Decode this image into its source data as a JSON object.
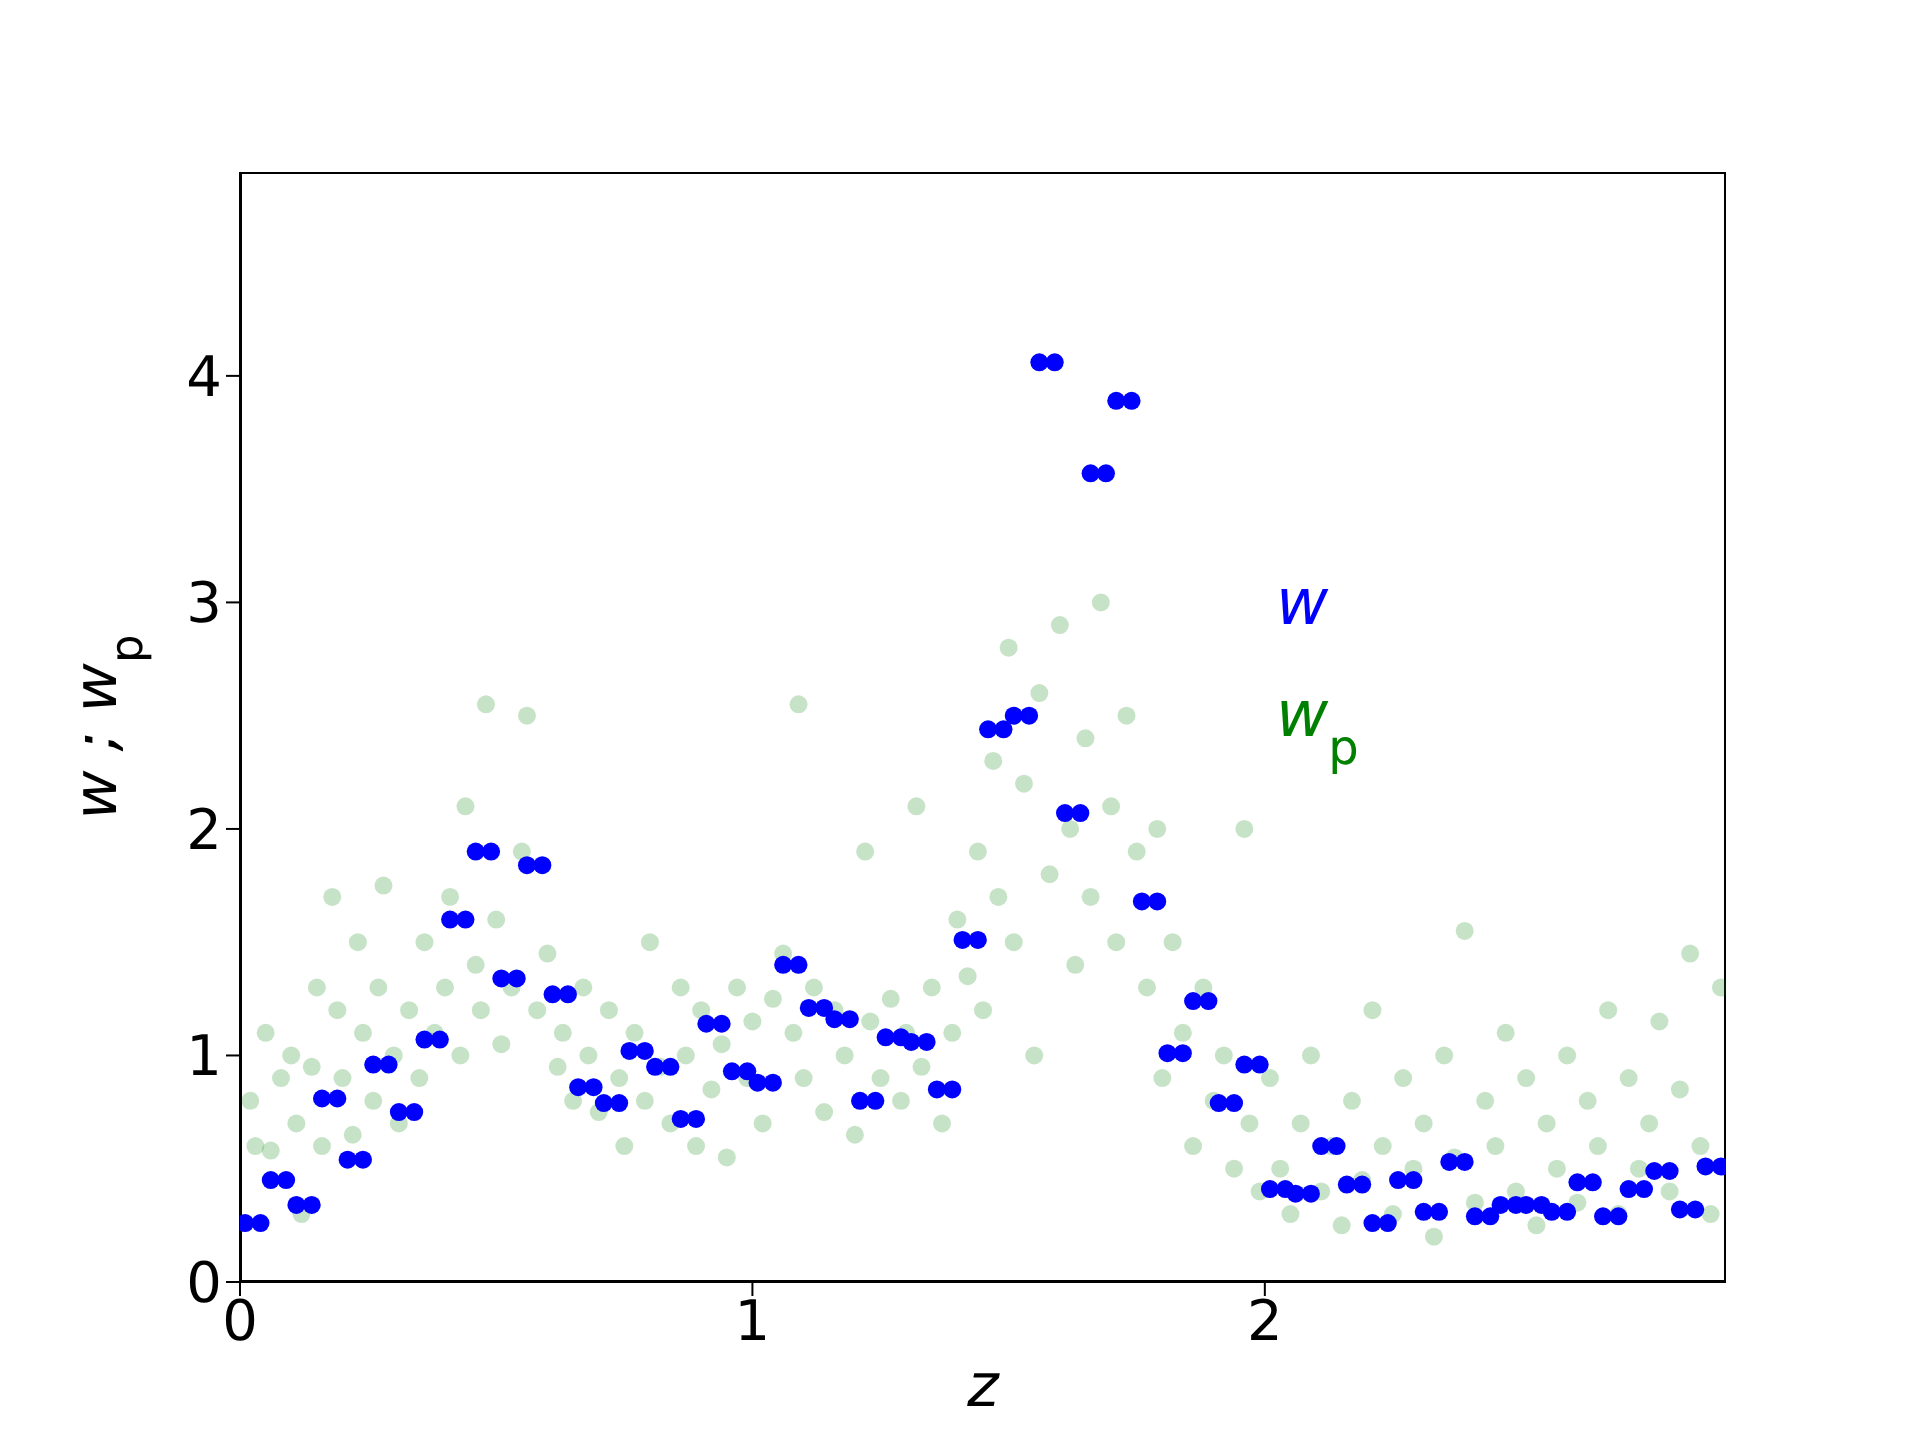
{
  "chart_data": {
    "type": "scatter",
    "xlabel": "z",
    "ylabel": "w ; w$_{p}$",
    "xlim": [
      0,
      2.9
    ],
    "ylim": [
      0,
      4.9
    ],
    "xticks": [
      0,
      1,
      2
    ],
    "yticks": [
      0,
      1,
      2,
      3,
      4
    ],
    "legend": "right",
    "marker": "circle",
    "series": [
      {
        "name": "w",
        "color": "#0000ff",
        "x": [
          0.01,
          0.04,
          0.06,
          0.09,
          0.11,
          0.14,
          0.16,
          0.19,
          0.21,
          0.24,
          0.26,
          0.29,
          0.31,
          0.34,
          0.36,
          0.39,
          0.41,
          0.44,
          0.46,
          0.49,
          0.51,
          0.54,
          0.56,
          0.59,
          0.61,
          0.64,
          0.66,
          0.69,
          0.71,
          0.74,
          0.76,
          0.79,
          0.81,
          0.84,
          0.86,
          0.89,
          0.91,
          0.94,
          0.96,
          0.99,
          1.01,
          1.04,
          1.06,
          1.09,
          1.11,
          1.14,
          1.16,
          1.19,
          1.21,
          1.24,
          1.26,
          1.29,
          1.31,
          1.34,
          1.36,
          1.39,
          1.41,
          1.44,
          1.46,
          1.49,
          1.51,
          1.54,
          1.56,
          1.59,
          1.61,
          1.64,
          1.66,
          1.69,
          1.71,
          1.74,
          1.76,
          1.79,
          1.81,
          1.84,
          1.86,
          1.89,
          1.91,
          1.94,
          1.96,
          1.99,
          2.01,
          2.04,
          2.06,
          2.09,
          2.11,
          2.14,
          2.16,
          2.19,
          2.21,
          2.24,
          2.26,
          2.29,
          2.31,
          2.34,
          2.36,
          2.39,
          2.41,
          2.44,
          2.46,
          2.49,
          2.51,
          2.54,
          2.56,
          2.59,
          2.61,
          2.64,
          2.66,
          2.69,
          2.71,
          2.74,
          2.76,
          2.79,
          2.81,
          2.84,
          2.86,
          2.89
        ],
        "values": [
          0.26,
          0.26,
          0.45,
          0.45,
          0.34,
          0.34,
          0.81,
          0.81,
          0.54,
          0.54,
          0.96,
          0.96,
          0.75,
          0.75,
          1.07,
          1.07,
          1.6,
          1.6,
          1.9,
          1.9,
          1.34,
          1.34,
          1.84,
          1.84,
          1.27,
          1.27,
          0.86,
          0.86,
          0.79,
          0.79,
          1.02,
          1.02,
          0.95,
          0.95,
          0.72,
          0.72,
          1.14,
          1.14,
          0.93,
          0.93,
          0.88,
          0.88,
          1.4,
          1.4,
          1.21,
          1.21,
          1.16,
          1.16,
          0.8,
          0.8,
          1.08,
          1.08,
          1.06,
          1.06,
          0.85,
          0.85,
          1.51,
          1.51,
          2.44,
          2.44,
          2.5,
          2.5,
          4.06,
          4.06,
          2.07,
          2.07,
          3.57,
          3.57,
          3.89,
          3.89,
          1.68,
          1.68,
          1.01,
          1.01,
          1.24,
          1.24,
          0.79,
          0.79,
          0.96,
          0.96,
          0.41,
          0.41,
          0.39,
          0.39,
          0.6,
          0.6,
          0.43,
          0.43,
          0.26,
          0.26,
          0.45,
          0.45,
          0.31,
          0.31,
          0.53,
          0.53,
          0.29,
          0.29,
          0.34,
          0.34,
          0.34,
          0.34,
          0.31,
          0.31,
          0.44,
          0.44,
          0.29,
          0.29,
          0.41,
          0.41,
          0.49,
          0.49,
          0.32,
          0.32,
          0.51,
          0.51
        ]
      },
      {
        "name": "w$_{p}$",
        "color": "#008000",
        "x": [
          0.02,
          0.03,
          0.05,
          0.06,
          0.08,
          0.1,
          0.11,
          0.12,
          0.14,
          0.15,
          0.16,
          0.18,
          0.19,
          0.2,
          0.22,
          0.23,
          0.24,
          0.26,
          0.27,
          0.28,
          0.3,
          0.31,
          0.33,
          0.35,
          0.36,
          0.38,
          0.4,
          0.41,
          0.43,
          0.44,
          0.46,
          0.47,
          0.48,
          0.5,
          0.51,
          0.53,
          0.55,
          0.56,
          0.58,
          0.6,
          0.62,
          0.63,
          0.65,
          0.67,
          0.68,
          0.7,
          0.72,
          0.74,
          0.75,
          0.77,
          0.79,
          0.8,
          0.82,
          0.84,
          0.86,
          0.87,
          0.89,
          0.9,
          0.92,
          0.94,
          0.95,
          0.97,
          0.99,
          1.0,
          1.02,
          1.04,
          1.06,
          1.08,
          1.09,
          1.1,
          1.12,
          1.14,
          1.16,
          1.18,
          1.2,
          1.22,
          1.23,
          1.25,
          1.27,
          1.29,
          1.3,
          1.32,
          1.33,
          1.35,
          1.37,
          1.39,
          1.4,
          1.42,
          1.44,
          1.45,
          1.47,
          1.48,
          1.5,
          1.51,
          1.53,
          1.55,
          1.56,
          1.58,
          1.6,
          1.62,
          1.63,
          1.65,
          1.66,
          1.68,
          1.7,
          1.71,
          1.73,
          1.75,
          1.77,
          1.79,
          1.8,
          1.82,
          1.84,
          1.86,
          1.88,
          1.9,
          1.92,
          1.94,
          1.96,
          1.97,
          1.99,
          2.01,
          2.03,
          2.05,
          2.07,
          2.09,
          2.11,
          2.13,
          2.15,
          2.17,
          2.19,
          2.21,
          2.23,
          2.25,
          2.27,
          2.29,
          2.31,
          2.33,
          2.35,
          2.37,
          2.39,
          2.41,
          2.43,
          2.45,
          2.47,
          2.49,
          2.51,
          2.53,
          2.55,
          2.57,
          2.59,
          2.61,
          2.63,
          2.65,
          2.67,
          2.69,
          2.71,
          2.73,
          2.75,
          2.77,
          2.79,
          2.81,
          2.83,
          2.85,
          2.87,
          2.89
        ],
        "values": [
          0.8,
          0.6,
          1.1,
          0.58,
          0.9,
          1.0,
          0.7,
          0.3,
          0.95,
          1.3,
          0.6,
          1.7,
          1.2,
          0.9,
          0.65,
          1.5,
          1.1,
          0.8,
          1.3,
          1.75,
          1.0,
          0.7,
          1.2,
          0.9,
          1.5,
          1.1,
          1.3,
          1.7,
          1.0,
          2.1,
          1.4,
          1.2,
          2.55,
          1.6,
          1.05,
          1.3,
          1.9,
          2.5,
          1.2,
          1.45,
          0.95,
          1.1,
          0.8,
          1.3,
          1.0,
          0.75,
          1.2,
          0.9,
          0.6,
          1.1,
          0.8,
          1.5,
          0.95,
          0.7,
          1.3,
          1.0,
          0.6,
          1.2,
          0.85,
          1.05,
          0.55,
          1.3,
          0.9,
          1.15,
          0.7,
          1.25,
          1.45,
          1.1,
          2.55,
          0.9,
          1.3,
          0.75,
          1.2,
          1.0,
          0.65,
          1.9,
          1.15,
          0.9,
          1.25,
          0.8,
          1.1,
          2.1,
          0.95,
          1.3,
          0.7,
          1.1,
          1.6,
          1.35,
          1.9,
          1.2,
          2.3,
          1.7,
          2.8,
          1.5,
          2.2,
          1.0,
          2.6,
          1.8,
          2.9,
          2.0,
          1.4,
          2.4,
          1.7,
          3.0,
          2.1,
          1.5,
          2.5,
          1.9,
          1.3,
          2.0,
          0.9,
          1.5,
          1.1,
          0.6,
          1.3,
          0.8,
          1.0,
          0.5,
          2.0,
          0.7,
          0.4,
          0.9,
          0.5,
          0.3,
          0.7,
          1.0,
          0.4,
          0.6,
          0.25,
          0.8,
          0.45,
          1.2,
          0.6,
          0.3,
          0.9,
          0.5,
          0.7,
          0.2,
          1.0,
          0.55,
          1.55,
          0.35,
          0.8,
          0.6,
          1.1,
          0.4,
          0.9,
          0.25,
          0.7,
          0.5,
          1.0,
          0.35,
          0.8,
          0.6,
          1.2,
          0.3,
          0.9,
          0.5,
          0.7,
          1.15,
          0.4,
          0.85,
          1.45,
          0.6,
          0.3,
          1.3
        ]
      }
    ]
  }
}
